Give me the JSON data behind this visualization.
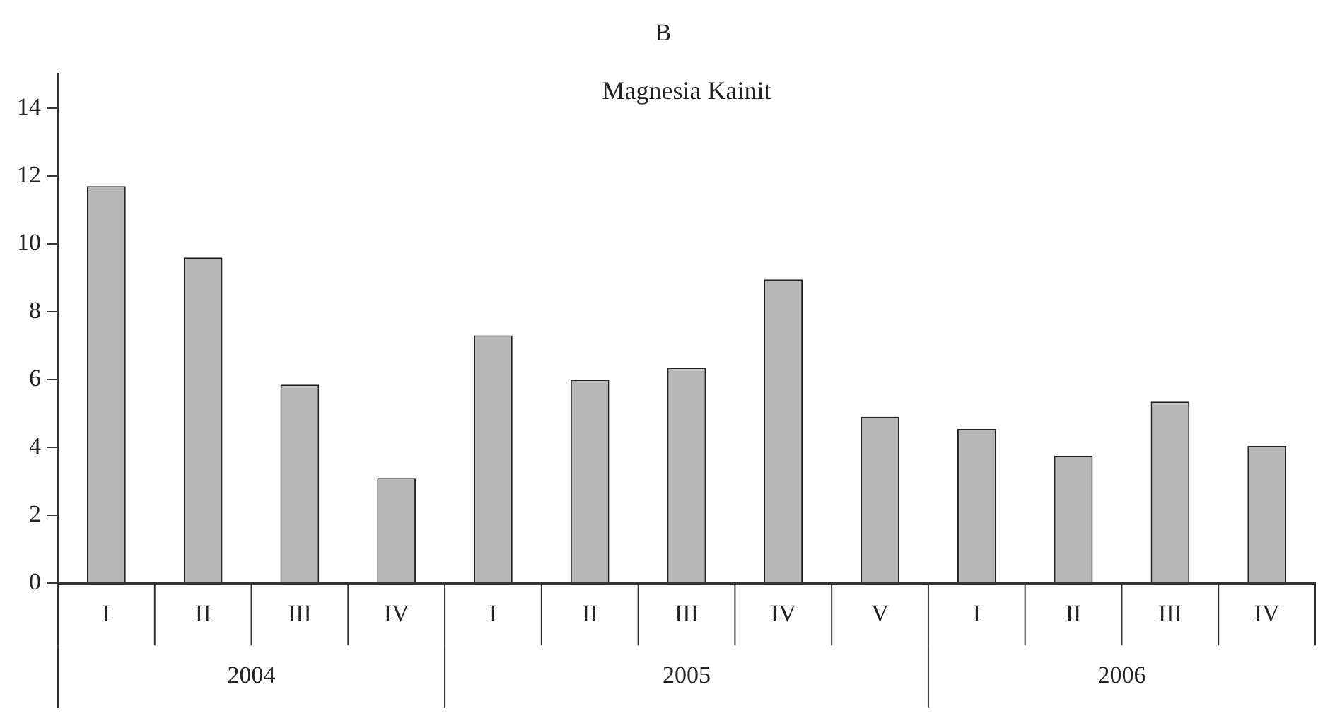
{
  "chart_data": {
    "type": "bar",
    "title": "B",
    "subtitle": "Magnesia Kainit",
    "categories": [
      "I",
      "II",
      "III",
      "IV",
      "I",
      "II",
      "III",
      "IV",
      "V",
      "I",
      "II",
      "III",
      "IV"
    ],
    "values": [
      11.7,
      9.6,
      5.85,
      3.1,
      7.3,
      6.0,
      6.35,
      8.95,
      4.9,
      4.55,
      3.75,
      5.35,
      4.05
    ],
    "color": "#b8b8b8",
    "ylim": [
      0,
      15
    ],
    "yticks": [
      0,
      2,
      4,
      6,
      8,
      10,
      12,
      14
    ],
    "grid": false,
    "legend": false,
    "annotations": [
      "2004",
      "2005",
      "2006"
    ]
  }
}
